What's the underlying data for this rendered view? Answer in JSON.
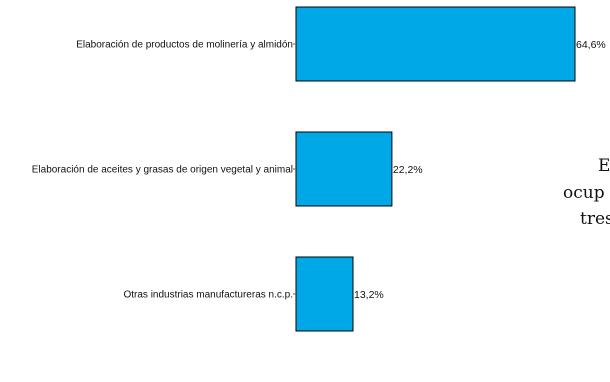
{
  "chart_data": {
    "type": "bar",
    "orientation": "horizontal",
    "categories": [
      "Elaboración de productos de molinería y almidón",
      "Elaboración de aceites y grasas de origen vegetal y animal",
      "Otras industrias manufactureras n.c.p."
    ],
    "values": [
      64.6,
      22.2,
      13.2
    ],
    "value_labels": [
      "64,6%",
      "22,2%",
      "13,2%"
    ],
    "bar_color": "#00a8e8",
    "bar_outline": "#000000",
    "xlim": [
      0,
      64.6
    ],
    "grid": false,
    "legend": "none"
  },
  "side_text": [
    "E",
    "ocup",
    "tres"
  ]
}
